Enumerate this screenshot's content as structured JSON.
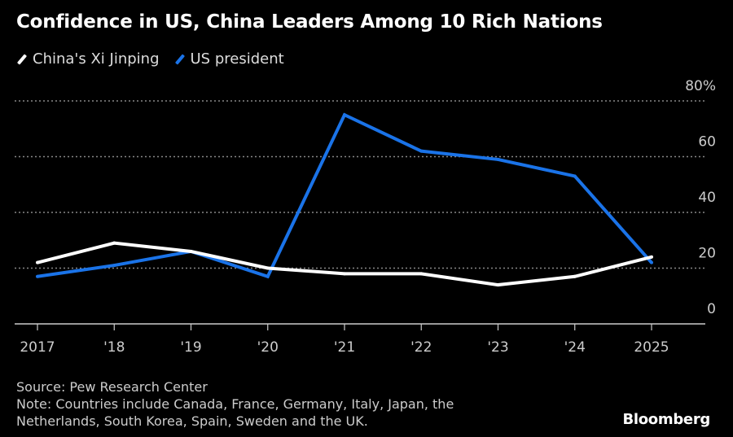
{
  "chart_data": {
    "type": "line",
    "title": "Confidence in US, China Leaders Among 10 Rich Nations",
    "x": [
      "2017",
      "'18",
      "'19",
      "'20",
      "'21",
      "'22",
      "'23",
      "'24",
      "2025"
    ],
    "series": [
      {
        "name": "China's Xi Jinping",
        "color": "#ffffff",
        "values": [
          22,
          29,
          26,
          20,
          18,
          18,
          14,
          17,
          24
        ]
      },
      {
        "name": "US president",
        "color": "#1a73e8",
        "values": [
          17,
          21,
          26,
          17,
          75,
          62,
          59,
          53,
          22
        ]
      }
    ],
    "yticks": [
      "0",
      "20",
      "40",
      "60",
      "80%"
    ],
    "ytick_values": [
      0,
      20,
      40,
      60,
      80
    ],
    "ylim": [
      0,
      80
    ],
    "grid": true,
    "legend_placement": "top-left",
    "xlabel": "",
    "ylabel": ""
  },
  "footer": {
    "source": "Source: Pew Research Center",
    "note_line1": "Note: Countries include Canada, France, Germany, Italy, Japan, the",
    "note_line2": "Netherlands, South Korea, Spain, Sweden and the UK."
  },
  "brand": "Bloomberg"
}
